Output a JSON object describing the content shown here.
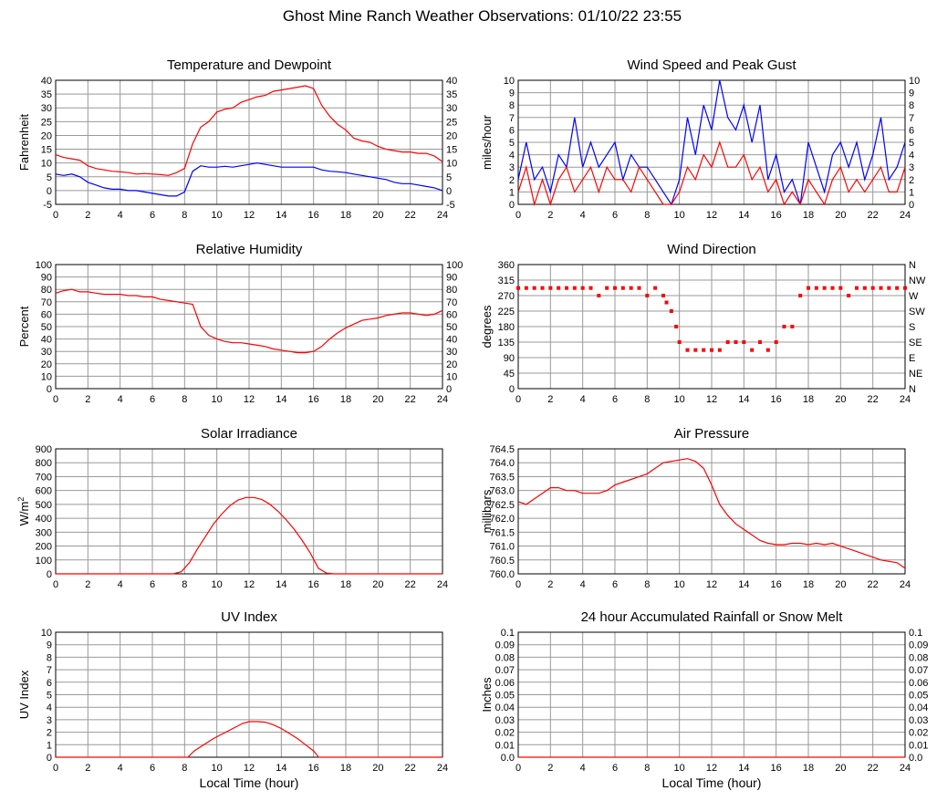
{
  "page_title": "Ghost Mine Ranch Weather Observations: 01/10/22 23:55",
  "colors": {
    "red": "#ff0000",
    "blue": "#0000ff",
    "grid": "#999999",
    "frame": "#000000"
  },
  "chart_data": [
    {
      "id": "temp",
      "type": "line",
      "title": "Temperature and Dewpoint",
      "ylabel": "Fahrenheit",
      "xlabel": "",
      "xlim": [
        0,
        24
      ],
      "xticks": [
        "0",
        "2",
        "4",
        "6",
        "8",
        "10",
        "12",
        "14",
        "16",
        "18",
        "20",
        "22",
        "24"
      ],
      "ylim": [
        -5,
        40
      ],
      "yticks": [
        "40",
        "35",
        "30",
        "25",
        "20",
        "15",
        "10",
        "5",
        "0",
        "-5"
      ],
      "right_axis": true,
      "grid": true,
      "series": [
        {
          "color": "#ff0000",
          "x": [
            0,
            0.5,
            1,
            1.5,
            2,
            2.5,
            3,
            3.5,
            4,
            4.5,
            5,
            5.5,
            6,
            6.5,
            7,
            7.5,
            8,
            8.5,
            9,
            9.5,
            10,
            10.5,
            11,
            11.5,
            12,
            12.5,
            13,
            13.5,
            14,
            14.5,
            15,
            15.5,
            16,
            16.5,
            17,
            17.5,
            18,
            18.5,
            19,
            19.5,
            20,
            20.5,
            21,
            21.5,
            22,
            22.5,
            23,
            23.5,
            24
          ],
          "y": [
            13,
            12,
            11.5,
            11,
            9,
            8,
            7.5,
            7,
            6.8,
            6.5,
            6,
            6.2,
            6,
            5.8,
            5.5,
            6.5,
            8,
            17,
            23,
            25,
            28.5,
            29.5,
            30,
            32,
            33,
            34,
            34.5,
            36,
            36.5,
            37,
            37.5,
            38,
            37,
            31,
            27,
            24,
            22,
            19,
            18,
            17.5,
            16,
            15,
            14.5,
            14,
            14,
            13.5,
            13.5,
            12.5,
            10.5
          ]
        },
        {
          "color": "#0000ff",
          "x": [
            0,
            0.5,
            1,
            1.5,
            2,
            2.5,
            3,
            3.5,
            4,
            4.5,
            5,
            5.5,
            6,
            6.5,
            7,
            7.5,
            8,
            8.5,
            9,
            9.5,
            10,
            10.5,
            11,
            11.5,
            12,
            12.5,
            13,
            13.5,
            14,
            14.5,
            15,
            15.5,
            16,
            16.5,
            17,
            17.5,
            18,
            18.5,
            19,
            19.5,
            20,
            20.5,
            21,
            21.5,
            22,
            22.5,
            23,
            23.5,
            24
          ],
          "y": [
            6,
            5.5,
            6,
            5,
            3,
            2,
            1,
            0.5,
            0.5,
            0,
            0,
            -0.5,
            -1,
            -1.5,
            -2,
            -2,
            -0.5,
            7,
            9,
            8.5,
            8.5,
            8.8,
            8.5,
            9,
            9.5,
            10,
            9.5,
            9,
            8.5,
            8.5,
            8.5,
            8.5,
            8.5,
            7.5,
            7,
            6.8,
            6.5,
            6,
            5.5,
            5,
            4.5,
            4,
            3,
            2.5,
            2.5,
            2,
            1.5,
            1,
            0
          ]
        }
      ]
    },
    {
      "id": "wind",
      "type": "line",
      "title": "Wind Speed and Peak Gust",
      "ylabel": "miles/hour",
      "xlabel": "",
      "xlim": [
        0,
        24
      ],
      "xticks": [
        "0",
        "2",
        "4",
        "6",
        "8",
        "10",
        "12",
        "14",
        "16",
        "18",
        "20",
        "22",
        "24"
      ],
      "ylim": [
        0,
        10
      ],
      "yticks": [
        "10",
        "9",
        "8",
        "7",
        "6",
        "5",
        "4",
        "3",
        "2",
        "1",
        "0"
      ],
      "right_axis": true,
      "grid": true,
      "series": [
        {
          "color": "#0000ff",
          "x": [
            0,
            0.5,
            1,
            1.5,
            2,
            2.5,
            3,
            3.5,
            4,
            4.5,
            5,
            5.5,
            6,
            6.5,
            7,
            7.5,
            8,
            8.5,
            9,
            9.5,
            10,
            10.5,
            11,
            11.5,
            12,
            12.5,
            13,
            13.5,
            14,
            14.5,
            15,
            15.5,
            16,
            16.5,
            17,
            17.5,
            18,
            18.5,
            19,
            19.5,
            20,
            20.5,
            21,
            21.5,
            22,
            22.5,
            23,
            23.5,
            24
          ],
          "y": [
            2,
            5,
            2,
            3,
            1,
            4,
            3,
            7,
            3,
            5,
            3,
            4,
            5,
            2,
            4,
            3,
            3,
            2,
            1,
            0,
            2,
            7,
            4,
            8,
            6,
            10,
            7,
            6,
            8,
            5,
            8,
            2,
            4,
            1,
            2,
            0,
            5,
            3,
            1,
            4,
            5,
            3,
            5,
            2,
            4,
            7,
            2,
            3,
            5
          ]
        },
        {
          "color": "#ff0000",
          "x": [
            0,
            0.5,
            1,
            1.5,
            2,
            2.5,
            3,
            3.5,
            4,
            4.5,
            5,
            5.5,
            6,
            6.5,
            7,
            7.5,
            8,
            8.5,
            9,
            9.5,
            10,
            10.5,
            11,
            11.5,
            12,
            12.5,
            13,
            13.5,
            14,
            14.5,
            15,
            15.5,
            16,
            16.5,
            17,
            17.5,
            18,
            18.5,
            19,
            19.5,
            20,
            20.5,
            21,
            21.5,
            22,
            22.5,
            23,
            23.5,
            24
          ],
          "y": [
            1,
            3,
            0,
            2,
            0,
            2,
            3,
            1,
            2,
            3,
            1,
            3,
            2,
            2,
            1,
            3,
            2,
            1,
            0,
            0,
            1,
            3,
            2,
            4,
            3,
            5,
            3,
            3,
            4,
            2,
            3,
            1,
            2,
            0,
            1,
            0,
            2,
            1,
            0,
            2,
            3,
            1,
            2,
            1,
            2,
            3,
            1,
            1,
            3
          ]
        }
      ]
    },
    {
      "id": "rh",
      "type": "line",
      "title": "Relative Humidity",
      "ylabel": "Percent",
      "xlabel": "",
      "xlim": [
        0,
        24
      ],
      "xticks": [
        "0",
        "2",
        "4",
        "6",
        "8",
        "10",
        "12",
        "14",
        "16",
        "18",
        "20",
        "22",
        "24"
      ],
      "ylim": [
        0,
        100
      ],
      "yticks": [
        "100",
        "90",
        "80",
        "70",
        "60",
        "50",
        "40",
        "30",
        "20",
        "10",
        "0"
      ],
      "right_axis": true,
      "grid": true,
      "series": [
        {
          "color": "#ff0000",
          "x": [
            0,
            0.5,
            1,
            1.5,
            2,
            2.5,
            3,
            3.5,
            4,
            4.5,
            5,
            5.5,
            6,
            6.5,
            7,
            7.5,
            8,
            8.5,
            9,
            9.5,
            10,
            10.5,
            11,
            11.5,
            12,
            12.5,
            13,
            13.5,
            14,
            14.5,
            15,
            15.5,
            16,
            16.5,
            17,
            17.5,
            18,
            18.5,
            19,
            19.5,
            20,
            20.5,
            21,
            21.5,
            22,
            22.5,
            23,
            23.5,
            24
          ],
          "y": [
            77,
            79,
            80,
            78,
            78,
            77,
            76,
            76,
            76,
            75,
            75,
            74,
            74,
            72,
            71,
            70,
            69,
            68,
            50,
            43,
            40,
            38,
            37,
            37,
            36,
            35,
            34,
            32,
            31,
            30,
            29,
            29,
            30,
            34,
            40,
            45,
            49,
            52,
            55,
            56,
            57,
            59,
            60,
            61,
            61,
            60,
            59,
            60,
            63
          ]
        }
      ]
    },
    {
      "id": "wdir",
      "type": "scatter",
      "title": "Wind Direction",
      "ylabel": "degrees",
      "xlabel": "",
      "xlim": [
        0,
        24
      ],
      "xticks": [
        "0",
        "2",
        "4",
        "6",
        "8",
        "10",
        "12",
        "14",
        "16",
        "18",
        "20",
        "22",
        "24"
      ],
      "ylim": [
        0,
        360
      ],
      "yticks": [
        "360",
        "315",
        "270",
        "225",
        "180",
        "135",
        "90",
        "45",
        "0"
      ],
      "right_ticks": [
        "N",
        "NW",
        "W",
        "SW",
        "S",
        "SE",
        "E",
        "NE",
        "N"
      ],
      "grid": true,
      "series": [
        {
          "color": "#ff0000",
          "x": [
            0,
            0.5,
            1,
            1.5,
            2,
            2.5,
            3,
            3.5,
            4,
            4.5,
            5,
            5.5,
            6,
            6.5,
            7,
            7.5,
            8,
            8.5,
            9,
            9.2,
            9.5,
            9.8,
            10,
            10.5,
            11,
            11.5,
            12,
            12.5,
            13,
            13.5,
            14,
            14.5,
            15,
            15.5,
            16,
            16.5,
            17,
            17.5,
            18,
            18.5,
            19,
            19.5,
            20,
            20.5,
            21,
            21.5,
            22,
            22.5,
            23,
            23.5,
            24
          ],
          "y": [
            292,
            292,
            292,
            292,
            292,
            292,
            292,
            292,
            292,
            292,
            270,
            292,
            292,
            292,
            292,
            292,
            270,
            292,
            270,
            250,
            225,
            180,
            135,
            112,
            112,
            112,
            112,
            112,
            135,
            135,
            135,
            112,
            135,
            112,
            135,
            180,
            180,
            270,
            292,
            292,
            292,
            292,
            292,
            270,
            292,
            292,
            292,
            292,
            292,
            292,
            292
          ]
        }
      ]
    },
    {
      "id": "solar",
      "type": "line",
      "title": "Solar Irradiance",
      "ylabel": "W/m",
      "ylabel_sup": "2",
      "xlabel": "",
      "xlim": [
        0,
        24
      ],
      "xticks": [
        "0",
        "2",
        "4",
        "6",
        "8",
        "10",
        "12",
        "14",
        "16",
        "18",
        "20",
        "22",
        "24"
      ],
      "ylim": [
        0,
        900
      ],
      "yticks": [
        "900",
        "800",
        "700",
        "600",
        "500",
        "400",
        "300",
        "200",
        "100",
        "0"
      ],
      "right_axis": false,
      "grid": true,
      "series": [
        {
          "color": "#ff0000",
          "x": [
            0,
            7.3,
            7.8,
            8.3,
            8.8,
            9.3,
            9.8,
            10.3,
            10.8,
            11.3,
            11.8,
            12.3,
            12.8,
            13.3,
            13.8,
            14.3,
            14.8,
            15.3,
            15.8,
            16.3,
            16.8,
            17.3,
            24
          ],
          "y": [
            0,
            0,
            15,
            80,
            180,
            270,
            360,
            430,
            490,
            530,
            550,
            550,
            535,
            500,
            450,
            390,
            320,
            240,
            150,
            40,
            5,
            0,
            0
          ]
        }
      ]
    },
    {
      "id": "pressure",
      "type": "line",
      "title": "Air Pressure",
      "ylabel": "millibars",
      "xlabel": "",
      "xlim": [
        0,
        24
      ],
      "xticks": [
        "0",
        "2",
        "4",
        "6",
        "8",
        "10",
        "12",
        "14",
        "16",
        "18",
        "20",
        "22",
        "24"
      ],
      "ylim": [
        760.0,
        764.5
      ],
      "yticks": [
        "764.5",
        "764.0",
        "763.5",
        "763.0",
        "762.5",
        "762.0",
        "761.5",
        "761.0",
        "760.5",
        "760.0"
      ],
      "right_axis": false,
      "grid": true,
      "series": [
        {
          "color": "#ff0000",
          "x": [
            0,
            0.5,
            1,
            1.5,
            2,
            2.5,
            3,
            3.5,
            4,
            4.5,
            5,
            5.5,
            6,
            6.5,
            7,
            7.5,
            8,
            8.5,
            9,
            9.5,
            10,
            10.5,
            11,
            11.5,
            12,
            12.5,
            13,
            13.5,
            14,
            14.5,
            15,
            15.5,
            16,
            16.5,
            17,
            17.5,
            18,
            18.5,
            19,
            19.5,
            20,
            20.5,
            21,
            21.5,
            22,
            22.5,
            23,
            23.5,
            24
          ],
          "y": [
            762.6,
            762.5,
            762.7,
            762.9,
            763.1,
            763.1,
            763.0,
            763.0,
            762.9,
            762.9,
            762.9,
            763.0,
            763.2,
            763.3,
            763.4,
            763.5,
            763.6,
            763.8,
            764.0,
            764.05,
            764.1,
            764.15,
            764.05,
            763.8,
            763.2,
            762.5,
            762.1,
            761.8,
            761.6,
            761.4,
            761.2,
            761.1,
            761.05,
            761.05,
            761.1,
            761.1,
            761.05,
            761.1,
            761.05,
            761.1,
            761.0,
            760.9,
            760.8,
            760.7,
            760.6,
            760.5,
            760.45,
            760.4,
            760.2
          ]
        }
      ]
    },
    {
      "id": "uv",
      "type": "line",
      "title": "UV Index",
      "ylabel": "UV Index",
      "xlabel": "Local Time (hour)",
      "xlim": [
        0,
        24
      ],
      "xticks": [
        "0",
        "2",
        "4",
        "6",
        "8",
        "10",
        "12",
        "14",
        "16",
        "18",
        "20",
        "22",
        "24"
      ],
      "ylim": [
        0,
        10
      ],
      "yticks": [
        "10",
        "9",
        "8",
        "7",
        "6",
        "5",
        "4",
        "3",
        "2",
        "1",
        "0"
      ],
      "right_axis": false,
      "grid": true,
      "series": [
        {
          "color": "#ff0000",
          "x": [
            0,
            8.2,
            8.6,
            9.2,
            9.8,
            10.4,
            11,
            11.6,
            12,
            12.5,
            13,
            13.5,
            14,
            14.5,
            15,
            15.5,
            16,
            16.2,
            16.3,
            24
          ],
          "y": [
            0,
            0,
            0.5,
            1,
            1.5,
            1.9,
            2.3,
            2.7,
            2.85,
            2.85,
            2.8,
            2.6,
            2.3,
            1.9,
            1.5,
            1,
            0.5,
            0.2,
            0,
            0
          ]
        }
      ]
    },
    {
      "id": "rain",
      "type": "line",
      "title": "24 hour Accumulated Rainfall or Snow Melt",
      "ylabel": "Inches",
      "xlabel": "Local Time (hour)",
      "xlim": [
        0,
        24
      ],
      "xticks": [
        "0",
        "2",
        "4",
        "6",
        "8",
        "10",
        "12",
        "14",
        "16",
        "18",
        "20",
        "22",
        "24"
      ],
      "ylim": [
        0,
        0.1
      ],
      "yticks": [
        "0.1",
        "0.09",
        "0.08",
        "0.07",
        "0.06",
        "0.05",
        "0.04",
        "0.03",
        "0.02",
        "0.01",
        "0.0"
      ],
      "right_axis": true,
      "grid": true,
      "series": [
        {
          "color": "#ff0000",
          "x": [
            0,
            24
          ],
          "y": [
            0,
            0
          ]
        }
      ]
    }
  ]
}
